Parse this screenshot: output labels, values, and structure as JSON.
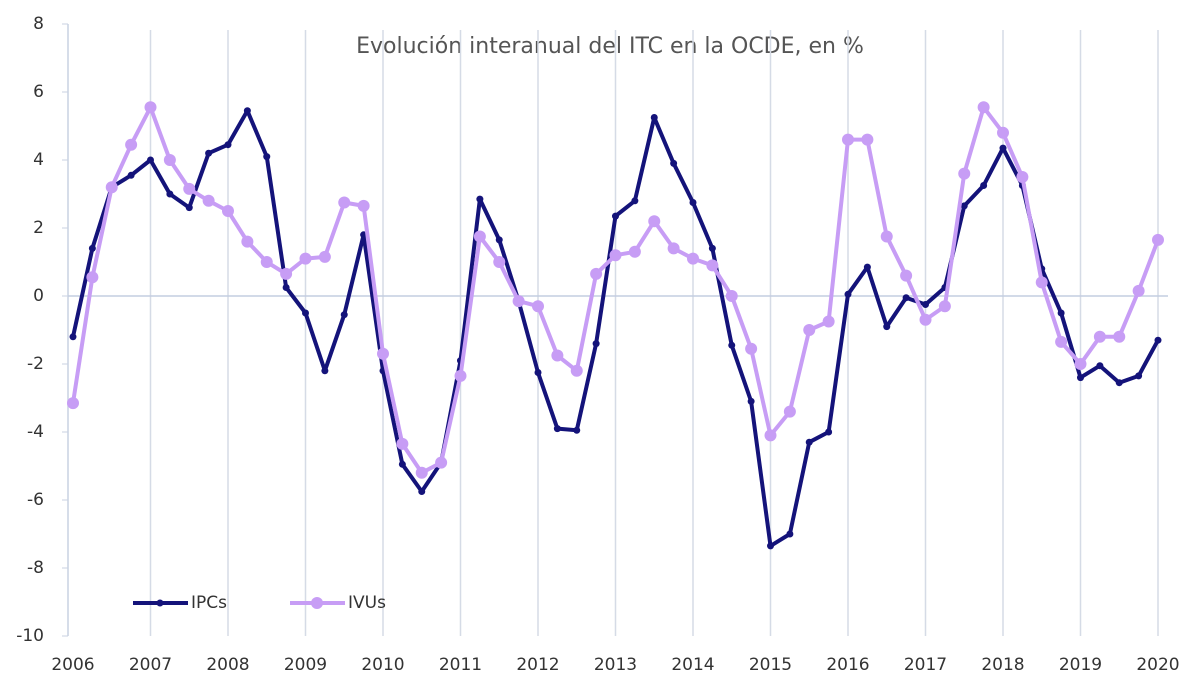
{
  "chart_data": {
    "type": "line",
    "title": "Evolución interanual del ITC en la OCDE, en %",
    "x": [
      2006,
      2006.25,
      2006.5,
      2006.75,
      2007,
      2007.25,
      2007.5,
      2007.75,
      2008,
      2008.25,
      2008.5,
      2008.75,
      2009,
      2009.25,
      2009.5,
      2009.75,
      2010,
      2010.25,
      2010.5,
      2010.75,
      2011,
      2011.25,
      2011.5,
      2011.75,
      2012,
      2012.25,
      2012.5,
      2012.75,
      2013,
      2013.25,
      2013.5,
      2013.75,
      2014,
      2014.25,
      2014.5,
      2014.75,
      2015,
      2015.25,
      2015.5,
      2015.75,
      2016,
      2016.25,
      2016.5,
      2016.75,
      2017,
      2017.25,
      2017.5,
      2017.75,
      2018,
      2018.25,
      2018.5,
      2018.75,
      2019,
      2019.25,
      2019.5,
      2019.75,
      2020
    ],
    "series": [
      {
        "name": "IPCs",
        "color": "#14137a",
        "values": [
          -1.2,
          1.4,
          3.2,
          3.55,
          4.0,
          3.0,
          2.6,
          4.2,
          4.45,
          5.45,
          4.1,
          0.25,
          -0.5,
          -2.2,
          -0.55,
          1.8,
          -2.2,
          -4.95,
          -5.75,
          -4.9,
          -1.9,
          2.85,
          1.65,
          -0.15,
          -2.25,
          -3.9,
          -3.95,
          -1.4,
          2.35,
          2.8,
          5.25,
          3.9,
          2.75,
          1.4,
          -1.45,
          -3.1,
          -7.35,
          -7.0,
          -4.3,
          -4.0,
          0.05,
          0.85,
          -0.9,
          -0.05,
          -0.25,
          0.25,
          2.65,
          3.25,
          4.35,
          3.25,
          0.8,
          -0.5,
          -2.4,
          -2.05,
          -2.55,
          -2.35,
          -1.3
        ]
      },
      {
        "name": "IVUs",
        "color": "#c79df5",
        "values": [
          -3.15,
          0.55,
          3.2,
          4.45,
          5.55,
          4.0,
          3.15,
          2.8,
          2.5,
          1.6,
          1.0,
          0.65,
          1.1,
          1.15,
          2.75,
          2.65,
          -1.7,
          -4.35,
          -5.2,
          -4.9,
          -2.35,
          1.75,
          1.0,
          -0.15,
          -0.3,
          -1.75,
          -2.2,
          0.65,
          1.2,
          1.3,
          2.2,
          1.4,
          1.1,
          0.9,
          0.0,
          -1.55,
          -4.1,
          -3.4,
          -1.0,
          -0.75,
          4.6,
          4.6,
          1.75,
          0.6,
          -0.7,
          -0.3,
          3.6,
          5.55,
          4.8,
          3.5,
          0.4,
          -1.35,
          -2.0,
          -1.2,
          -1.2,
          0.15,
          1.65
        ]
      }
    ],
    "xlim": [
      2006,
      2020
    ],
    "xticks": [
      2006,
      2007,
      2008,
      2009,
      2010,
      2011,
      2012,
      2013,
      2014,
      2015,
      2016,
      2017,
      2018,
      2019,
      2020
    ],
    "ylim": [
      -10,
      8
    ],
    "yticks": [
      -10,
      -8,
      -6,
      -4,
      -2,
      0,
      2,
      4,
      6,
      8
    ],
    "grid": true,
    "legend": "lower left"
  }
}
